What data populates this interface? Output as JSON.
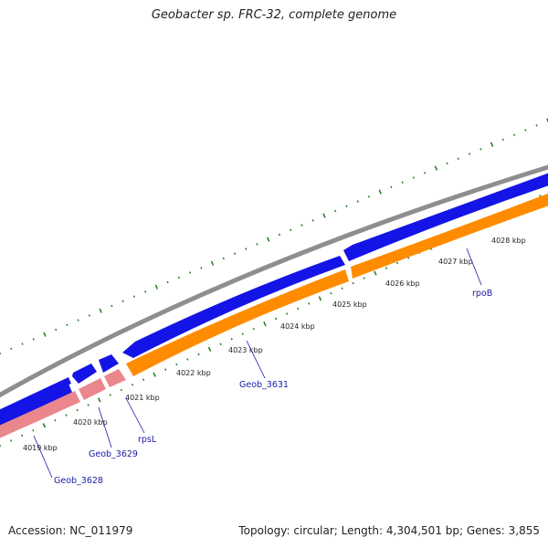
{
  "title": "Geobacter sp. FRC-32, complete genome",
  "accession": "Accession: NC_011979",
  "summary": "Topology: circular; Length: 4,304,501 bp; Genes: 3,855",
  "colors": {
    "backbone": "#8e8e8e",
    "forward_cds": "#1414e6",
    "reverse_cds": "#ff8c00",
    "rrna_or_other": "#e9878d",
    "gc_ticks": "#1f7a1f",
    "label": "#1a1aa8"
  },
  "kbp_labels": [
    "4019 kbp",
    "4020 kbp",
    "4021 kbp",
    "4022 kbp",
    "4023 kbp",
    "4024 kbp",
    "4025 kbp",
    "4026 kbp",
    "4027 kbp",
    "4028 kbp"
  ],
  "gene_labels": [
    "Geob_3628",
    "Geob_3629",
    "rpsL",
    "Geob_3631",
    "rpoB"
  ]
}
